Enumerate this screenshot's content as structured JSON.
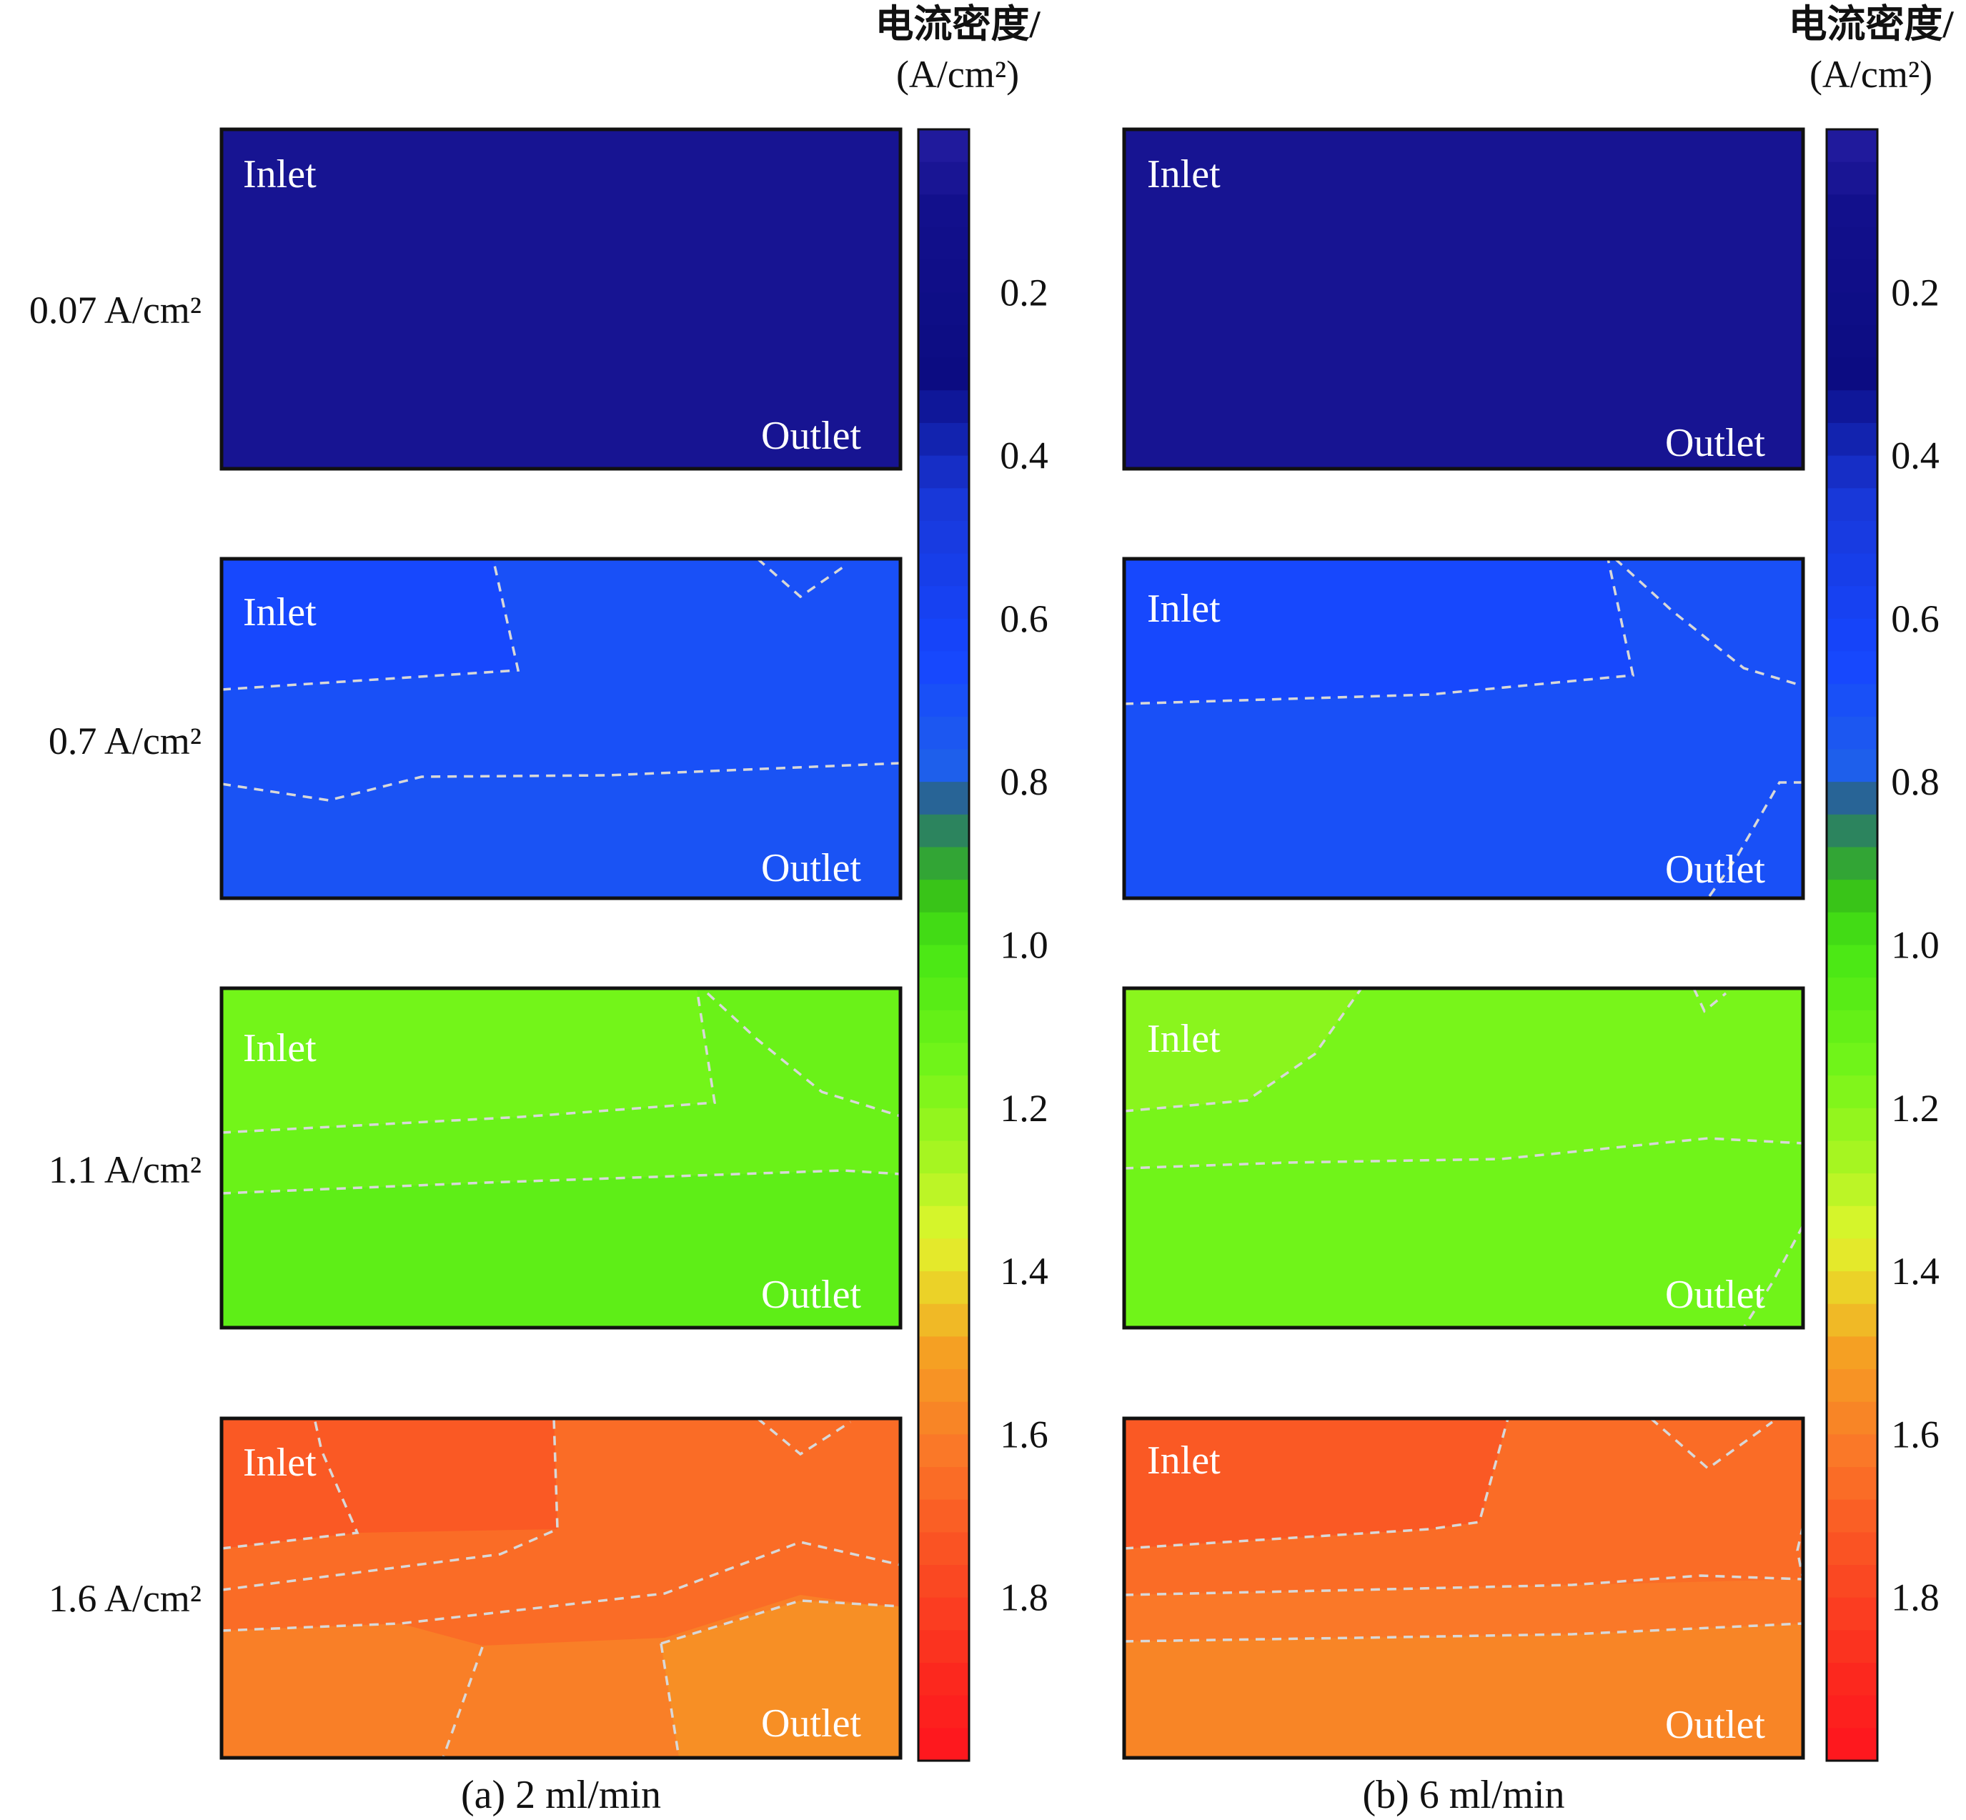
{
  "chart_data": {
    "type": "heatmap",
    "title": "",
    "colorbar": {
      "title_line1": "电流密度/",
      "title_line2": "(A/cm²)",
      "min": 0.0,
      "max": 2.0,
      "ticks": [
        "0.2",
        "0.4",
        "0.6",
        "0.8",
        "1.0",
        "1.2",
        "1.4",
        "1.6",
        "1.8"
      ],
      "tick_values": [
        0.2,
        0.4,
        0.6,
        0.8,
        1.0,
        1.2,
        1.4,
        1.6,
        1.8
      ],
      "levels": 50
    },
    "row_labels": [
      "0.07 A/cm²",
      "0.7 A/cm²",
      "1.1 A/cm²",
      "1.6 A/cm²"
    ],
    "inlet_label": "Inlet",
    "outlet_label": "Outlet",
    "panels": [
      {
        "caption": "(a) 2 ml/min",
        "rows": [
          {
            "current_density": 0.07,
            "zones": [
              0.07
            ]
          },
          {
            "current_density": 0.7,
            "zones": [
              0.66,
              0.7,
              0.72
            ]
          },
          {
            "current_density": 1.1,
            "zones": [
              1.15,
              1.12,
              1.08
            ]
          },
          {
            "current_density": 1.6,
            "zones": [
              1.72,
              1.66,
              1.6,
              1.55
            ]
          }
        ]
      },
      {
        "caption": "(b) 6 ml/min",
        "rows": [
          {
            "current_density": 0.07,
            "zones": [
              0.07
            ]
          },
          {
            "current_density": 0.7,
            "zones": [
              0.66,
              0.7
            ]
          },
          {
            "current_density": 1.1,
            "zones": [
              1.2,
              1.16,
              1.14
            ]
          },
          {
            "current_density": 1.6,
            "zones": [
              1.72,
              1.66,
              1.62,
              1.58
            ]
          }
        ]
      }
    ]
  }
}
